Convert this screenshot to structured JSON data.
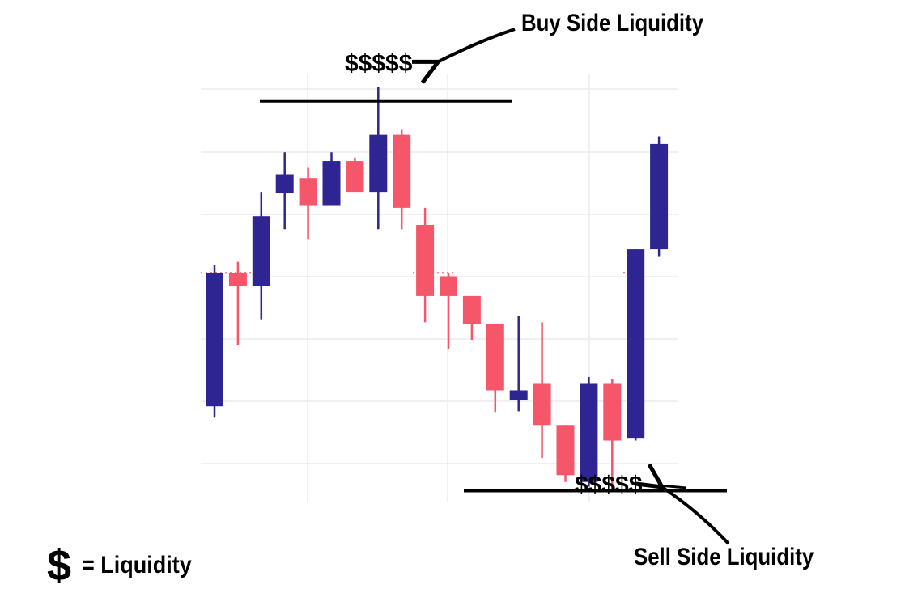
{
  "colors": {
    "bull": "#2e2592",
    "bear": "#f5566a",
    "level": "#000000",
    "grid": "#ececec",
    "ref": "#f5566a"
  },
  "annotations": {
    "buy_side": "Buy Side Liquidity",
    "sell_side": "Sell Side Liquidity",
    "dollars_top": "$$$$$",
    "dollars_bottom": "$$$$$",
    "legend_symbol": "$",
    "legend_text": "= Liquidity"
  },
  "chart_data": {
    "type": "candlestick",
    "title": "",
    "xlabel": "",
    "ylabel": "",
    "grid": true,
    "ylim": [
      0,
      100
    ],
    "candles": [
      {
        "open": 15.7,
        "high": 52.8,
        "low": 12.7,
        "close": 50.8,
        "dir": "up"
      },
      {
        "open": 50.8,
        "high": 53.7,
        "low": 31.8,
        "close": 47.4,
        "dir": "down"
      },
      {
        "open": 47.4,
        "high": 72.1,
        "low": 38.6,
        "close": 65.7,
        "dir": "up"
      },
      {
        "open": 71.7,
        "high": 82.5,
        "low": 62.3,
        "close": 76.7,
        "dir": "up"
      },
      {
        "open": 75.7,
        "high": 78.4,
        "low": 59.5,
        "close": 68.4,
        "dir": "down"
      },
      {
        "open": 68.4,
        "high": 82.5,
        "low": 68.4,
        "close": 80.2,
        "dir": "up"
      },
      {
        "open": 80.2,
        "high": 81.1,
        "low": 72.1,
        "close": 72.1,
        "dir": "down"
      },
      {
        "open": 72.1,
        "high": 99.6,
        "low": 62.3,
        "close": 87.1,
        "dir": "up"
      },
      {
        "open": 87.1,
        "high": 88.4,
        "low": 62.3,
        "close": 67.9,
        "dir": "down"
      },
      {
        "open": 63.4,
        "high": 67.9,
        "low": 37.8,
        "close": 44.7,
        "dir": "down"
      },
      {
        "open": 49.9,
        "high": 50.8,
        "low": 30.8,
        "close": 44.7,
        "dir": "down"
      },
      {
        "open": 44.7,
        "high": 44.7,
        "low": 33.2,
        "close": 37.4,
        "dir": "down"
      },
      {
        "open": 37.4,
        "high": 37.4,
        "low": 14.2,
        "close": 19.9,
        "dir": "down"
      },
      {
        "open": 17.4,
        "high": 39.5,
        "low": 14.4,
        "close": 19.9,
        "dir": "up"
      },
      {
        "open": 21.6,
        "high": 37.8,
        "low": 2.1,
        "close": 10.8,
        "dir": "down"
      },
      {
        "open": 10.8,
        "high": 10.8,
        "low": -4.2,
        "close": -2.4,
        "dir": "down"
      },
      {
        "open": -4.2,
        "high": 23.4,
        "low": -5.4,
        "close": 21.6,
        "dir": "up"
      },
      {
        "open": 21.6,
        "high": 22.9,
        "low": -6.0,
        "close": 6.7,
        "dir": "down"
      },
      {
        "open": 7.2,
        "high": 57.0,
        "low": 6.7,
        "close": 57.0,
        "dir": "up"
      },
      {
        "open": 57.0,
        "high": 86.7,
        "low": 55.0,
        "close": 84.7,
        "dir": "up"
      }
    ],
    "levels": [
      {
        "name": "buy_side",
        "value": 96.0
      },
      {
        "name": "sell_side",
        "value": -6.5
      }
    ],
    "reference_level": 50.8
  }
}
